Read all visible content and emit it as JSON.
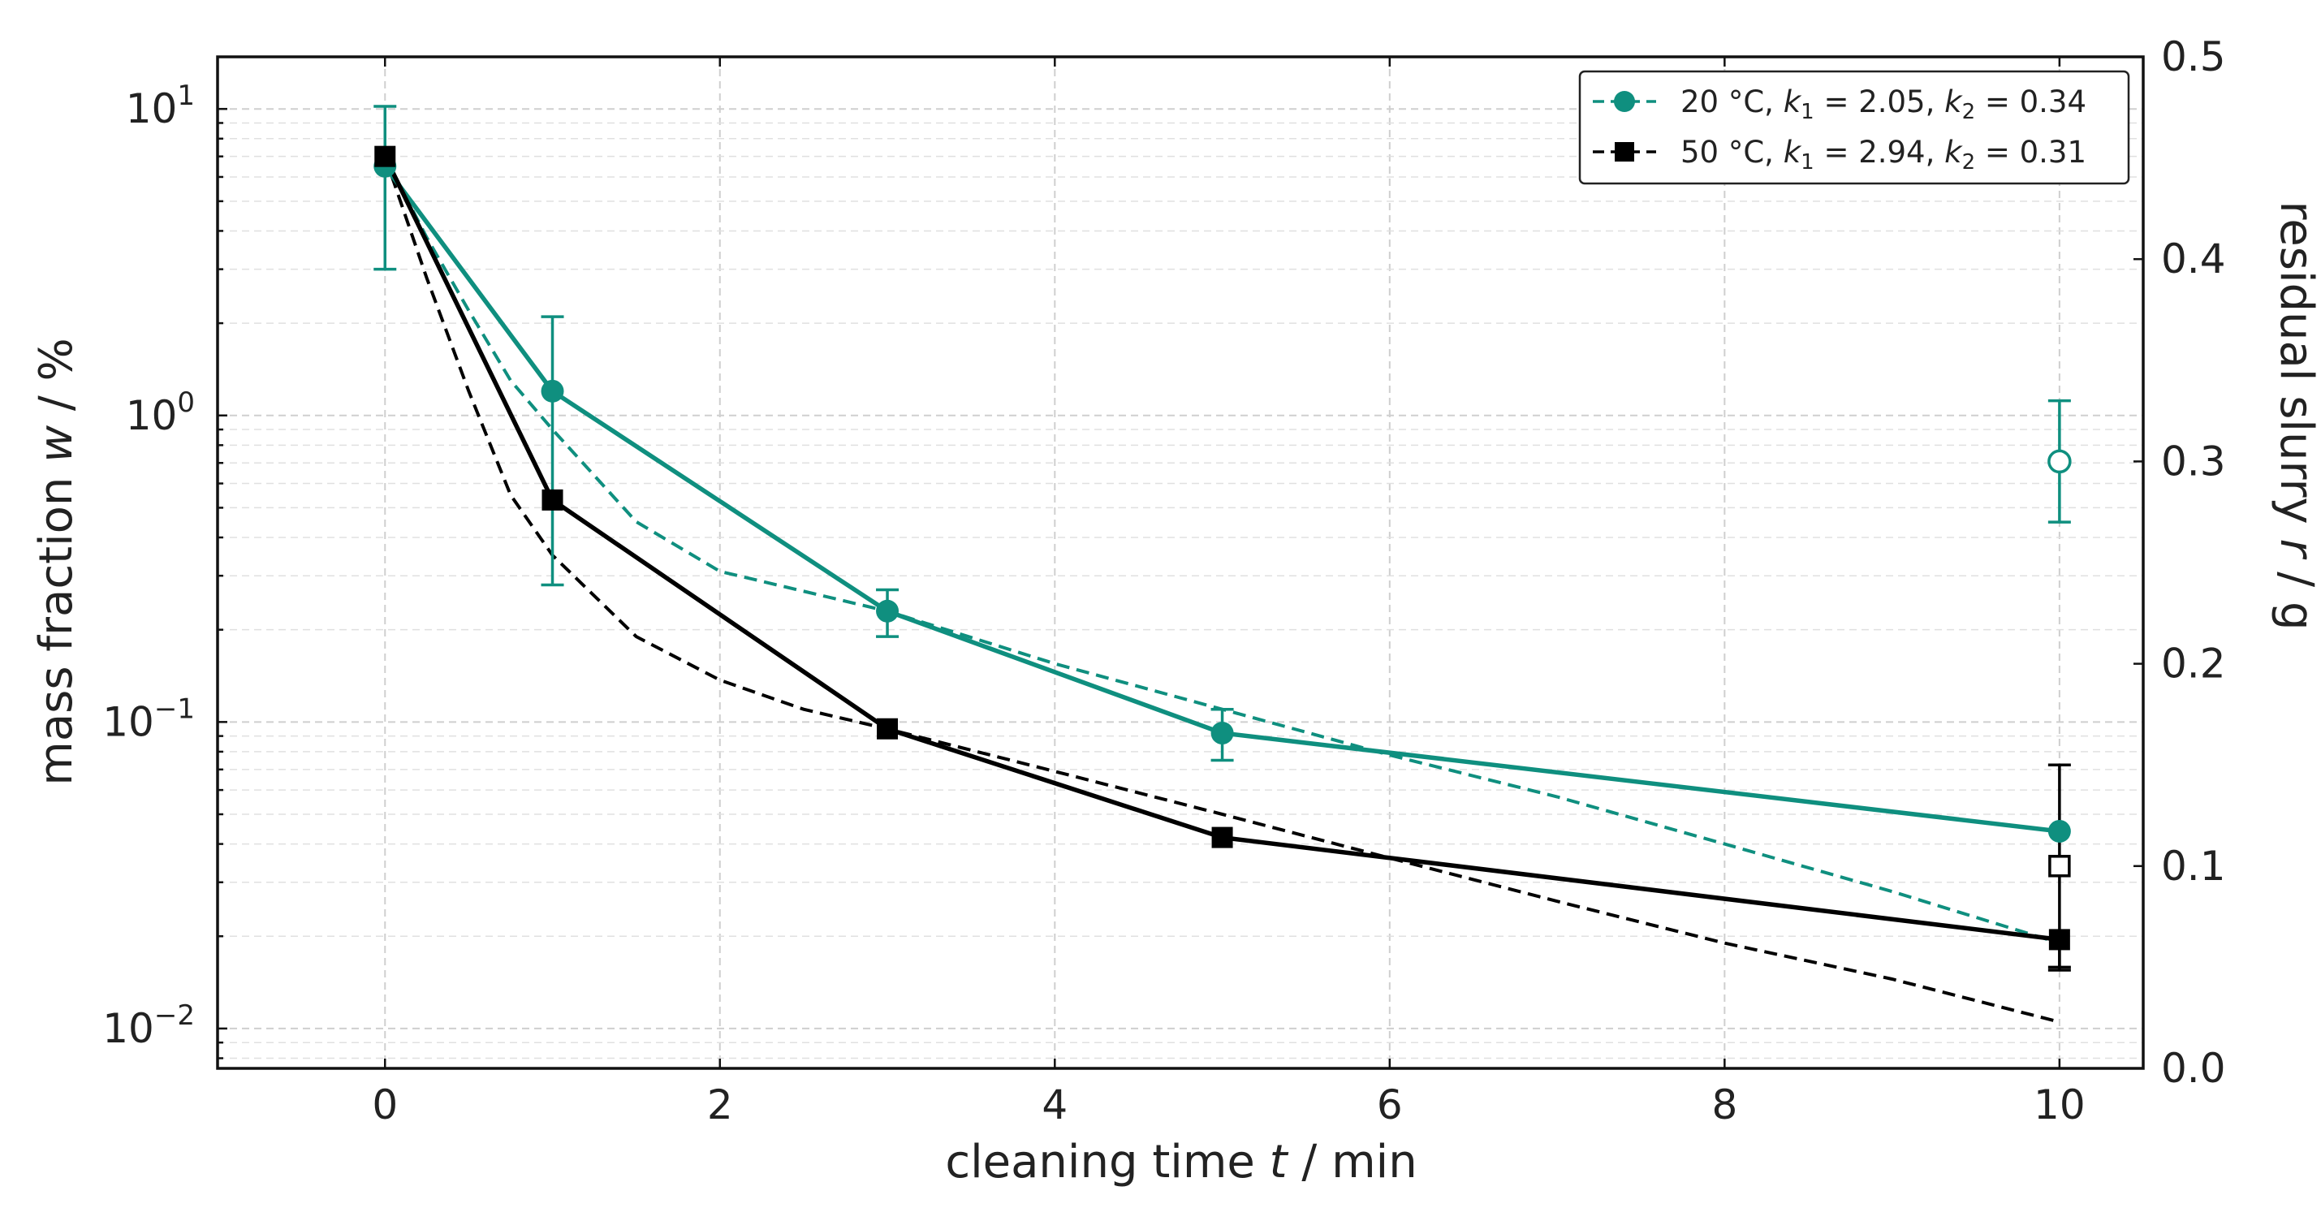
{
  "chart_data": {
    "type": "line",
    "title": "",
    "xlabel": {
      "prefix": "cleaning time ",
      "var": "t",
      "suffix": " / min"
    },
    "ylabel": {
      "prefix": "mass fraction ",
      "var": "w",
      "suffix": " / %"
    },
    "y2label": {
      "prefix": "residual slurry ",
      "var": "r",
      "suffix": " / g"
    },
    "xlim": [
      -1.0,
      10.5
    ],
    "xticks": [
      0,
      2,
      4,
      6,
      8,
      10
    ],
    "ylim_log10": [
      -2.13,
      1.17
    ],
    "yscale": "log",
    "yticks": [
      {
        "value": 10,
        "base": "10",
        "exp": "1"
      },
      {
        "value": 1,
        "base": "10",
        "exp": "0"
      },
      {
        "value": 0.1,
        "base": "10",
        "exp": "−1"
      },
      {
        "value": 0.01,
        "base": "10",
        "exp": "−2"
      }
    ],
    "y2lim": [
      0.0,
      0.5
    ],
    "y2ticks": [
      "0.0",
      "0.1",
      "0.2",
      "0.3",
      "0.4",
      "0.5"
    ],
    "grid": true,
    "legend_position": "top-right",
    "series": [
      {
        "name": "20 °C, k1 = 2.05, k2 = 0.34",
        "legend": {
          "pre": "20 °C, ",
          "k1": "k",
          "s1": "1",
          "v1": " = 2.05, ",
          "k2": "k",
          "s2": "2",
          "v2": " = 0.34"
        },
        "color": "#0f8f7f",
        "marker": "circle",
        "x": [
          0,
          1,
          3,
          5,
          10
        ],
        "y": [
          6.5,
          1.2,
          0.23,
          0.092,
          0.044
        ],
        "err_low": [
          3.0,
          0.28,
          0.19,
          0.075,
          null
        ],
        "err_high": [
          10.2,
          2.1,
          0.27,
          0.11,
          null
        ],
        "fit": {
          "x": [
            0,
            0.25,
            0.5,
            0.75,
            1,
            1.5,
            2,
            3,
            4,
            5,
            6,
            7,
            8,
            9,
            10
          ],
          "y": [
            7.0,
            3.8,
            2.2,
            1.3,
            0.9,
            0.45,
            0.31,
            0.23,
            0.155,
            0.11,
            0.078,
            0.057,
            0.04,
            0.028,
            0.019
          ]
        },
        "residual": {
          "x": 10,
          "r": 0.3,
          "r_low": 0.27,
          "r_high": 0.33
        }
      },
      {
        "name": "50 °C, k1 = 2.94, k2 = 0.31",
        "legend": {
          "pre": "50 °C, ",
          "k1": "k",
          "s1": "1",
          "v1": " = 2.94, ",
          "k2": "k",
          "s2": "2",
          "v2": " = 0.31"
        },
        "color": "#000000",
        "marker": "square",
        "x": [
          0,
          1,
          3,
          5,
          10
        ],
        "y": [
          7.0,
          0.53,
          0.095,
          0.042,
          0.0195
        ],
        "err_low": [
          null,
          null,
          null,
          null,
          0.0155
        ],
        "err_high": [
          null,
          null,
          null,
          null,
          null
        ],
        "fit": {
          "x": [
            0,
            0.25,
            0.5,
            0.75,
            1,
            1.5,
            2,
            2.5,
            3,
            4,
            5,
            6,
            7,
            8,
            9,
            10
          ],
          "y": [
            7.0,
            2.8,
            1.2,
            0.55,
            0.35,
            0.19,
            0.137,
            0.11,
            0.095,
            0.069,
            0.05,
            0.036,
            0.026,
            0.019,
            0.0145,
            0.0105
          ]
        },
        "residual": {
          "x": 10,
          "r": 0.1,
          "r_low": 0.05,
          "r_high": 0.15
        }
      }
    ]
  }
}
